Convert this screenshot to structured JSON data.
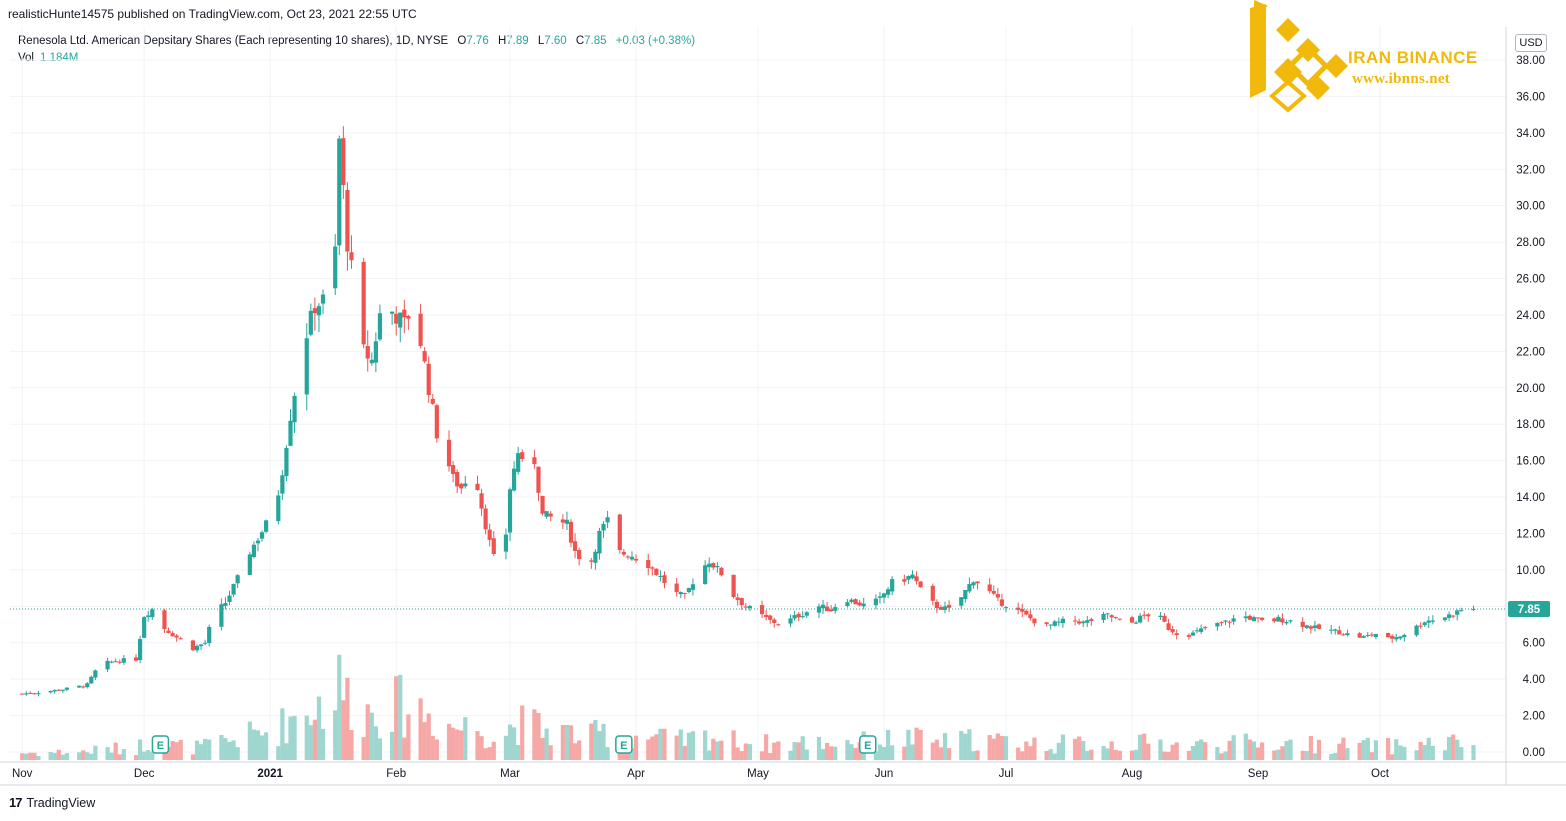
{
  "header": {
    "published": "realisticHunte14575 published on TradingView.com, Oct 23, 2021 22:55 UTC"
  },
  "legend": {
    "title": "Renesola Ltd. American Depsitary Shares (Each representing 10 shares), 1D, NYSE",
    "o_label": "O",
    "o_value": "7.76",
    "h_label": "H",
    "h_value": "7.89",
    "l_label": "L",
    "l_value": "7.60",
    "c_label": "C",
    "c_value": "7.85",
    "change": "+0.03 (+0.38%)",
    "vol_label": "Vol",
    "vol_value": "1.184M"
  },
  "currency": "USD",
  "price_tag": "7.85",
  "footer": {
    "brand": "TradingView"
  },
  "watermark": {
    "title": "IRAN BINANCE",
    "url": "www.ibnns.net"
  },
  "colors": {
    "up": "#26a69a",
    "down": "#ef5350",
    "up_vol": "#9fd6cf",
    "down_vol": "#f5a8a6",
    "gold": "#f0b90b"
  },
  "chart_data": {
    "type": "candlestick",
    "y_axis_labels": [
      "38.00",
      "36.00",
      "34.00",
      "32.00",
      "30.00",
      "28.00",
      "26.00",
      "24.00",
      "22.00",
      "20.00",
      "18.00",
      "16.00",
      "14.00",
      "12.00",
      "10.00",
      "8.00",
      "6.00",
      "4.00",
      "2.00",
      "0.00"
    ],
    "ylim": [
      0,
      38
    ],
    "x_axis_labels": [
      {
        "label": "Nov",
        "day": 0
      },
      {
        "label": "Dec",
        "day": 30
      },
      {
        "label": "2021",
        "day": 61
      },
      {
        "label": "Feb",
        "day": 92
      },
      {
        "label": "Mar",
        "day": 120
      },
      {
        "label": "Apr",
        "day": 151
      },
      {
        "label": "May",
        "day": 181
      },
      {
        "label": "Jun",
        "day": 212
      },
      {
        "label": "Jul",
        "day": 242
      },
      {
        "label": "Aug",
        "day": 273
      },
      {
        "label": "Sep",
        "day": 304
      },
      {
        "label": "Oct",
        "day": 334
      }
    ],
    "x_range_days": [
      -3,
      365
    ],
    "earnings_markers": [
      {
        "label": "E",
        "day": 34
      },
      {
        "label": "E",
        "day": 148
      },
      {
        "label": "E",
        "day": 208
      }
    ],
    "last_price": 7.85,
    "close_keypoints": [
      [
        0,
        3.2
      ],
      [
        5,
        3.3
      ],
      [
        12,
        3.5
      ],
      [
        16,
        3.7
      ],
      [
        19,
        4.8
      ],
      [
        23,
        5.0
      ],
      [
        28,
        5.1
      ],
      [
        30,
        7.5
      ],
      [
        33,
        8.0
      ],
      [
        35,
        6.8
      ],
      [
        38,
        6.3
      ],
      [
        42,
        5.7
      ],
      [
        45,
        6.0
      ],
      [
        47,
        7.5
      ],
      [
        50,
        8.2
      ],
      [
        53,
        9.5
      ],
      [
        56,
        11.0
      ],
      [
        60,
        12.5
      ],
      [
        62,
        13.0
      ],
      [
        64,
        15.5
      ],
      [
        66,
        18.5
      ],
      [
        68,
        21.0
      ],
      [
        70,
        23.0
      ],
      [
        72,
        24.5
      ],
      [
        74,
        24.8
      ],
      [
        75,
        23.8
      ],
      [
        76,
        25.5
      ],
      [
        77,
        27.5
      ],
      [
        78,
        33.6
      ],
      [
        80,
        28.0
      ],
      [
        82,
        25.0
      ],
      [
        84,
        22.0
      ],
      [
        86,
        21.5
      ],
      [
        88,
        24.0
      ],
      [
        91,
        24.2
      ],
      [
        94,
        23.5
      ],
      [
        96,
        24.5
      ],
      [
        98,
        22.5
      ],
      [
        100,
        20.0
      ],
      [
        102,
        17.5
      ],
      [
        104,
        16.5
      ],
      [
        106,
        15.0
      ],
      [
        108,
        14.5
      ],
      [
        111,
        15.8
      ],
      [
        113,
        13.5
      ],
      [
        115,
        11.5
      ],
      [
        117,
        9.8
      ],
      [
        119,
        12.0
      ],
      [
        120,
        14.5
      ],
      [
        122,
        16.5
      ],
      [
        124,
        15.0
      ],
      [
        126,
        16.0
      ],
      [
        128,
        13.0
      ],
      [
        131,
        12.8
      ],
      [
        134,
        12.5
      ],
      [
        136,
        11.0
      ],
      [
        138,
        10.5
      ],
      [
        140,
        10.5
      ],
      [
        142,
        12.0
      ],
      [
        144,
        12.7
      ],
      [
        146,
        11.0
      ],
      [
        150,
        10.8
      ],
      [
        154,
        10.3
      ],
      [
        157,
        9.6
      ],
      [
        160,
        8.8
      ],
      [
        163,
        8.5
      ],
      [
        166,
        9.8
      ],
      [
        169,
        10.5
      ],
      [
        172,
        9.8
      ],
      [
        175,
        8.6
      ],
      [
        178,
        8.0
      ],
      [
        181,
        7.6
      ],
      [
        184,
        7.2
      ],
      [
        187,
        7.0
      ],
      [
        190,
        7.4
      ],
      [
        193,
        7.7
      ],
      [
        196,
        8.0
      ],
      [
        199,
        7.8
      ],
      [
        202,
        8.5
      ],
      [
        205,
        8.2
      ],
      [
        208,
        8.0
      ],
      [
        211,
        8.4
      ],
      [
        214,
        9.3
      ],
      [
        217,
        9.5
      ],
      [
        219,
        9.7
      ],
      [
        222,
        8.5
      ],
      [
        225,
        8.0
      ],
      [
        228,
        7.8
      ],
      [
        231,
        8.5
      ],
      [
        234,
        9.5
      ],
      [
        237,
        9.0
      ],
      [
        240,
        8.3
      ],
      [
        243,
        8.0
      ],
      [
        246,
        7.6
      ],
      [
        249,
        7.2
      ],
      [
        252,
        6.9
      ],
      [
        255,
        7.1
      ],
      [
        258,
        7.3
      ],
      [
        261,
        7.1
      ],
      [
        264,
        7.3
      ],
      [
        267,
        7.5
      ],
      [
        270,
        7.2
      ],
      [
        273,
        7.1
      ],
      [
        276,
        7.5
      ],
      [
        279,
        7.6
      ],
      [
        282,
        6.8
      ],
      [
        285,
        6.4
      ],
      [
        288,
        6.5
      ],
      [
        291,
        6.8
      ],
      [
        294,
        7.0
      ],
      [
        297,
        7.2
      ],
      [
        300,
        7.5
      ],
      [
        303,
        7.3
      ],
      [
        306,
        7.1
      ],
      [
        309,
        7.3
      ],
      [
        312,
        7.2
      ],
      [
        315,
        7.0
      ],
      [
        318,
        6.8
      ],
      [
        321,
        6.7
      ],
      [
        324,
        6.6
      ],
      [
        327,
        6.4
      ],
      [
        330,
        6.3
      ],
      [
        333,
        6.5
      ],
      [
        336,
        6.2
      ],
      [
        339,
        6.4
      ],
      [
        342,
        6.7
      ],
      [
        345,
        7.2
      ],
      [
        348,
        7.3
      ],
      [
        351,
        7.5
      ],
      [
        354,
        7.8
      ],
      [
        357,
        7.85
      ]
    ],
    "volume_axis_max_m": 12
  }
}
